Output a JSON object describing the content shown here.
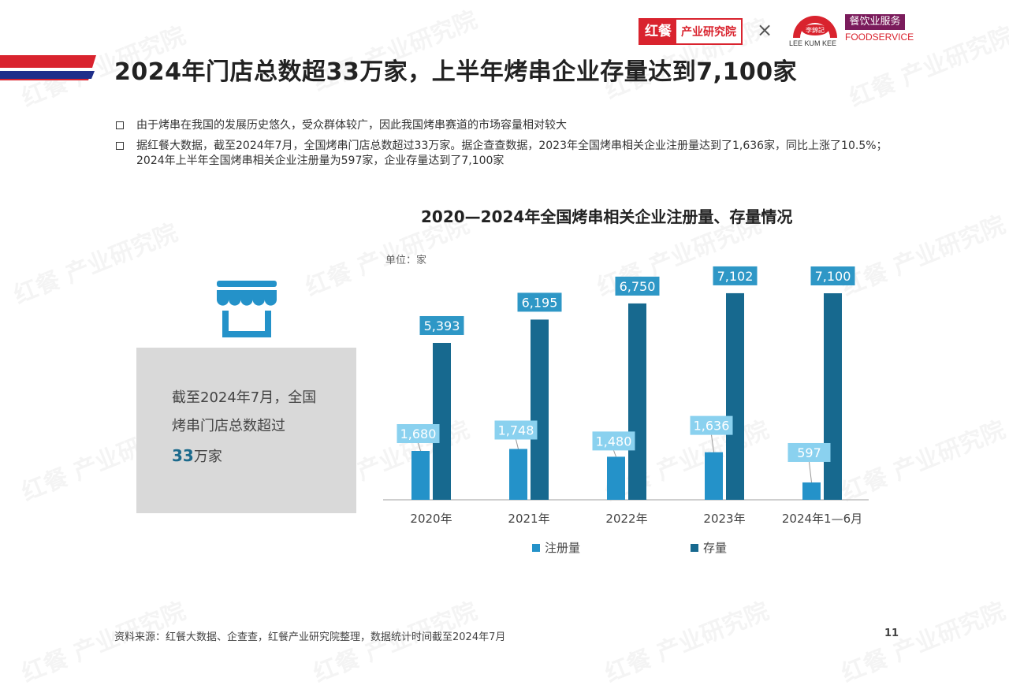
{
  "header": {
    "title": "2024年门店总数超33万家，上半年烤串企业存量达到7,100家",
    "logos": {
      "hongcan_mark": "红餐",
      "hongcan_text": "产业研究院",
      "times": "×",
      "lkk_text": "LEE KUM KEE",
      "fs_cn": "餐饮业服务",
      "fs_en": "FOODSERVICE"
    }
  },
  "bullets": [
    "由于烤串在我国的发展历史悠久，受众群体较广，因此我国烤串赛道的市场容量相对较大",
    "据红餐大数据，截至2024年7月，全国烤串门店总数超过33万家。据企查查数据，2023年全国烤串相关企业注册量达到了1,636家，同比上涨了10.5%；2024年上半年全国烤串相关企业注册量为597家，企业存量达到了7,100家"
  ],
  "info_box": {
    "text": "截至2024年7月，全国烤串门店总数超过",
    "number": "33",
    "unit": "万家"
  },
  "colors": {
    "red": "#d9232e",
    "navy": "#1f2f8a",
    "registration": "#2492c9",
    "stock": "#17698f",
    "label_light": "#8ad1ef",
    "label_dark": "#2e97c6",
    "icon": "#2492c9"
  },
  "chart_data": {
    "type": "bar",
    "title": "2020—2024年全国烤串相关企业注册量、存量情况",
    "unit": "单位：家",
    "categories": [
      "2020年",
      "2021年",
      "2022年",
      "2023年",
      "2024年1—6月"
    ],
    "series": [
      {
        "name": "注册量",
        "values": [
          1680,
          1748,
          1480,
          1636,
          597
        ],
        "labels": [
          "1,680",
          "1,748",
          "1,480",
          "1,636",
          "597"
        ]
      },
      {
        "name": "存量",
        "values": [
          5393,
          6195,
          6750,
          7102,
          7100
        ],
        "labels": [
          "5,393",
          "6,195",
          "6,750",
          "7,102",
          "7,100"
        ]
      }
    ],
    "legend_position": "bottom"
  },
  "footer": {
    "source": "资料来源：红餐大数据、企查查，红餐产业研究院整理，数据统计时间截至2024年7月",
    "page": "11"
  },
  "watermark": "红餐 产业研究院"
}
